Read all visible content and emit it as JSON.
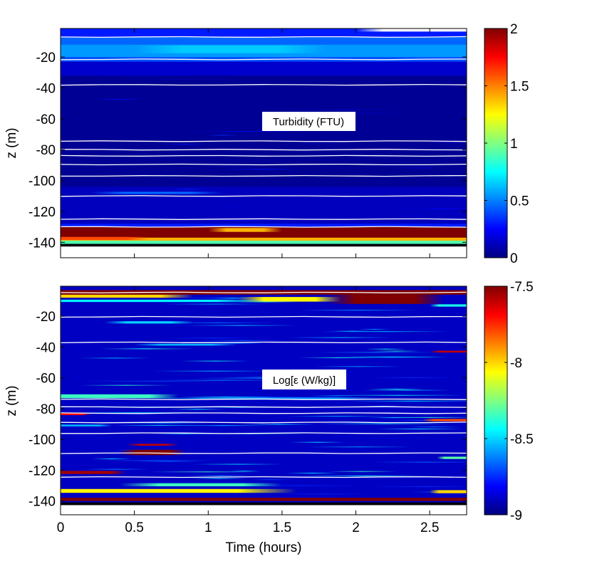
{
  "chart_data": [
    {
      "type": "heatmap",
      "title": "Turbidity (FTU)",
      "xlabel": "",
      "ylabel": "z (m)",
      "xlim": [
        0,
        2.75
      ],
      "ylim": [
        -150,
        -1.5
      ],
      "xticks": [
        0,
        0.5,
        1,
        1.5,
        2,
        2.5
      ],
      "xtick_labels_shown": false,
      "yticks": [
        -20,
        -40,
        -60,
        -80,
        -100,
        -120,
        -140
      ],
      "ytick_labels": [
        "-20",
        "-40",
        "-60",
        "-80",
        "-100",
        "-120",
        "-140"
      ],
      "colormap": "jet",
      "colorbar": {
        "range": [
          0,
          2
        ],
        "ticks": [
          0,
          0.5,
          1,
          1.5,
          2
        ],
        "tick_labels": [
          "0",
          "0.5",
          "1",
          "1.5",
          "2"
        ]
      },
      "profile": [
        {
          "z_top": -1.5,
          "z_bottom": -7,
          "value": 0.3
        },
        {
          "z_top": -7,
          "z_bottom": -12,
          "value": 0.45
        },
        {
          "z_top": -12,
          "z_bottom": -20,
          "value": 0.55
        },
        {
          "z_top": -20,
          "z_bottom": -23,
          "value": 0.4
        },
        {
          "z_top": -23,
          "z_bottom": -32,
          "value": 0.15
        },
        {
          "z_top": -32,
          "z_bottom": -104,
          "value": 0.04
        },
        {
          "z_top": -104,
          "z_bottom": -128,
          "value": 0.12
        },
        {
          "z_top": -128,
          "z_bottom": -130,
          "value": 0.3
        },
        {
          "z_top": -130,
          "z_bottom": -137,
          "value": 2.0
        },
        {
          "z_top": -137,
          "z_bottom": -139,
          "value": 1.4
        },
        {
          "z_top": -139,
          "z_bottom": -141,
          "value": 0.9
        },
        {
          "z_top": -141,
          "z_bottom": -142.5,
          "value": null,
          "color": "#000000"
        }
      ],
      "features": [
        {
          "z": -108,
          "thickness": 1.5,
          "t0": 0.2,
          "t1": 1.1,
          "value": 0.45
        },
        {
          "z": -132,
          "thickness": 2.5,
          "t0": 1.0,
          "t1": 1.5,
          "value": 1.4
        },
        {
          "z": -137.5,
          "thickness": 2,
          "t0": 0,
          "t1": 0.6,
          "value": 1.6
        },
        {
          "z": -15,
          "thickness": 5,
          "t0": 0.5,
          "t1": 1.8,
          "value": 0.65
        },
        {
          "z": -2.5,
          "thickness": 2,
          "t0": 2.0,
          "t1": 2.75,
          "value": null,
          "color": "#ffffff"
        }
      ],
      "isopycnals_z": [
        -7,
        -21.5,
        -38,
        -74.5,
        -80,
        -84,
        -89.6,
        -97,
        -110,
        -125,
        -130
      ]
    },
    {
      "type": "heatmap",
      "title": "Log[ε (W/kg)]",
      "xlabel": "Time (hours)",
      "ylabel": "z (m)",
      "xlim": [
        0,
        2.75
      ],
      "ylim": [
        -149,
        -0.5
      ],
      "xticks": [
        0,
        0.5,
        1,
        1.5,
        2,
        2.5
      ],
      "xtick_labels": [
        "0",
        "0.5",
        "1",
        "1.5",
        "2",
        "2.5"
      ],
      "yticks": [
        -20,
        -40,
        -60,
        -80,
        -100,
        -120,
        -140
      ],
      "ytick_labels": [
        "-20",
        "-40",
        "-60",
        "-80",
        "-100",
        "-120",
        "-140"
      ],
      "colormap": "jet",
      "colorbar": {
        "range": [
          -9,
          -7.5
        ],
        "ticks": [
          -9,
          -8.5,
          -8,
          -7.5
        ],
        "tick_labels": [
          "-9",
          "-8.5",
          "-8",
          "-7.5"
        ]
      },
      "profile": [
        {
          "z_top": -0.5,
          "z_bottom": -3,
          "value": -8.9
        },
        {
          "z_top": -3,
          "z_bottom": -141,
          "value": -8.9
        },
        {
          "z_top": -141,
          "z_bottom": -142.5,
          "value": null,
          "color": "#000000"
        }
      ],
      "features": [
        {
          "z": -4.5,
          "thickness": 3,
          "t0": 0,
          "t1": 2.75,
          "value": -7.5
        },
        {
          "z": -7,
          "thickness": 2,
          "t0": 0,
          "t1": 0.9,
          "value": -8.0
        },
        {
          "z": -9,
          "thickness": 6,
          "t0": 1.8,
          "t1": 2.6,
          "value": -7.5
        },
        {
          "z": -9,
          "thickness": 3,
          "t0": 1.2,
          "t1": 1.9,
          "value": -8.05
        },
        {
          "z": -10,
          "thickness": 1.5,
          "t0": 0,
          "t1": 1.4,
          "value": -8.45
        },
        {
          "z": -13,
          "thickness": 1.5,
          "t0": 2.5,
          "t1": 2.75,
          "value": -8.4
        },
        {
          "z": -24,
          "thickness": 1.5,
          "t0": 0.3,
          "t1": 0.9,
          "value": -8.5
        },
        {
          "z": -38.5,
          "thickness": 1.2,
          "t0": 0.5,
          "t1": 1.2,
          "value": -8.55
        },
        {
          "z": -43,
          "thickness": 1.2,
          "t0": 2.5,
          "t1": 2.75,
          "value": -7.6
        },
        {
          "z": -72,
          "thickness": 2.5,
          "t0": 0,
          "t1": 0.8,
          "value": -8.35
        },
        {
          "z": -73.5,
          "thickness": 1.5,
          "t0": 0.9,
          "t1": 2.2,
          "value": -8.6
        },
        {
          "z": -83.5,
          "thickness": 1.5,
          "t0": 0,
          "t1": 0.2,
          "value": -7.7
        },
        {
          "z": -87.5,
          "thickness": 1.5,
          "t0": 2.45,
          "t1": 2.75,
          "value": -7.8
        },
        {
          "z": -91,
          "thickness": 1.2,
          "t0": 0,
          "t1": 0.35,
          "value": -8.55
        },
        {
          "z": -103.5,
          "thickness": 1.2,
          "t0": 0.45,
          "t1": 0.8,
          "value": -7.6
        },
        {
          "z": -108.5,
          "thickness": 3.5,
          "t0": 0.4,
          "t1": 0.85,
          "value": -7.5
        },
        {
          "z": -112,
          "thickness": 1.5,
          "t0": 2.55,
          "t1": 2.75,
          "value": -8.3
        },
        {
          "z": -121.5,
          "thickness": 2,
          "t0": 0,
          "t1": 0.45,
          "value": -7.55
        },
        {
          "z": -129.5,
          "thickness": 2,
          "t0": 0.4,
          "t1": 1.5,
          "value": -8.35
        },
        {
          "z": -133.5,
          "thickness": 2.5,
          "t0": 0,
          "t1": 1.6,
          "value": -8.05
        },
        {
          "z": -134,
          "thickness": 2,
          "t0": 2.5,
          "t1": 2.75,
          "value": -8.0
        },
        {
          "z": -139,
          "thickness": 2,
          "t0": 0,
          "t1": 2.75,
          "value": -7.5
        }
      ],
      "isopycnals_z": [
        -4.6,
        -20.4,
        -37,
        -74,
        -79,
        -83,
        -89,
        -96,
        -109,
        -124.5
      ]
    }
  ]
}
